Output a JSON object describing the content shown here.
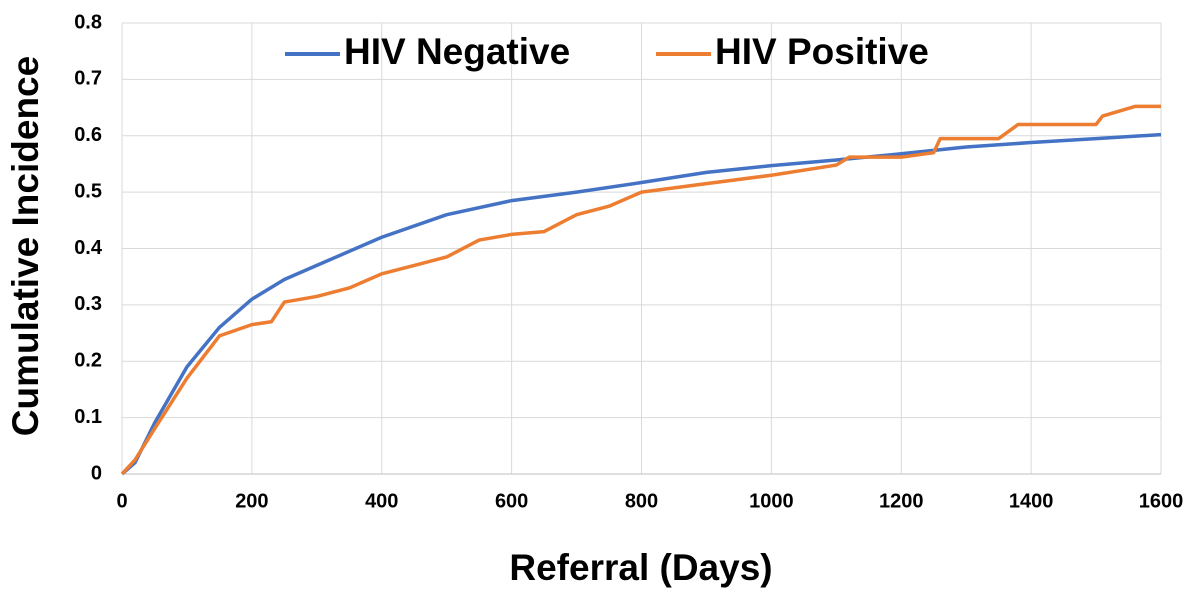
{
  "chart_data": {
    "type": "line",
    "xlabel": "Referral (Days)",
    "ylabel": "Cumulative Incidence",
    "xlim": [
      0,
      1600
    ],
    "xticks": [
      0,
      200,
      400,
      600,
      800,
      1000,
      1200,
      1400,
      1600
    ],
    "ylim": [
      0,
      0.8
    ],
    "yticks": [
      0,
      0.1,
      0.2,
      0.3,
      0.4,
      0.5,
      0.6,
      0.7,
      0.8
    ],
    "grid": true,
    "legend": "top",
    "series": [
      {
        "name": "HIV Negative",
        "color": "#4472c4",
        "x": [
          0,
          20,
          50,
          100,
          150,
          200,
          250,
          300,
          400,
          500,
          600,
          700,
          800,
          900,
          1000,
          1100,
          1200,
          1300,
          1400,
          1500,
          1600
        ],
        "values": [
          0,
          0.02,
          0.09,
          0.19,
          0.26,
          0.31,
          0.345,
          0.37,
          0.42,
          0.46,
          0.485,
          0.5,
          0.517,
          0.535,
          0.547,
          0.557,
          0.568,
          0.58,
          0.588,
          0.595,
          0.602
        ]
      },
      {
        "name": "HIV Positive",
        "color": "#ed7d31",
        "x": [
          0,
          20,
          50,
          100,
          150,
          200,
          230,
          250,
          300,
          350,
          400,
          450,
          500,
          550,
          600,
          650,
          700,
          750,
          800,
          900,
          1000,
          1100,
          1120,
          1200,
          1250,
          1260,
          1350,
          1380,
          1500,
          1510,
          1560,
          1600
        ],
        "values": [
          0,
          0.025,
          0.08,
          0.17,
          0.245,
          0.265,
          0.27,
          0.305,
          0.315,
          0.33,
          0.355,
          0.37,
          0.385,
          0.415,
          0.425,
          0.43,
          0.46,
          0.475,
          0.5,
          0.515,
          0.53,
          0.548,
          0.562,
          0.562,
          0.57,
          0.595,
          0.595,
          0.62,
          0.62,
          0.635,
          0.652,
          0.652
        ]
      }
    ]
  }
}
